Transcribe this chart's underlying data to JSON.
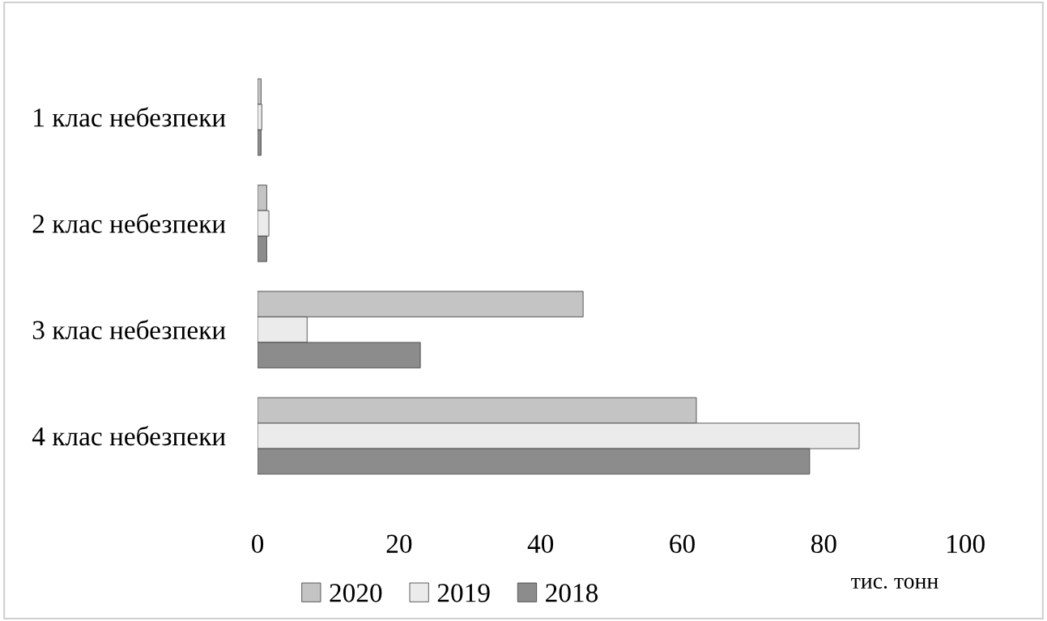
{
  "chart_data": {
    "type": "bar",
    "orientation": "horizontal",
    "xlabel": "тис. тонн",
    "categories": [
      "1 клас небезпеки",
      "2 клас небезпеки",
      "3 клас небезпеки",
      "4 клас небезпеки"
    ],
    "series": [
      {
        "name": "2020",
        "color": "#c4c4c4",
        "values": [
          0.5,
          1.3,
          46,
          62
        ]
      },
      {
        "name": "2019",
        "color": "#ebebeb",
        "values": [
          0.6,
          1.6,
          7,
          85
        ]
      },
      {
        "name": "2018",
        "color": "#8c8c8c",
        "values": [
          0.5,
          1.3,
          23,
          78
        ]
      }
    ],
    "xlim": [
      0,
      100
    ],
    "xticks": [
      0,
      20,
      40,
      60,
      80,
      100
    ],
    "grid": false,
    "legend": "bottom"
  }
}
